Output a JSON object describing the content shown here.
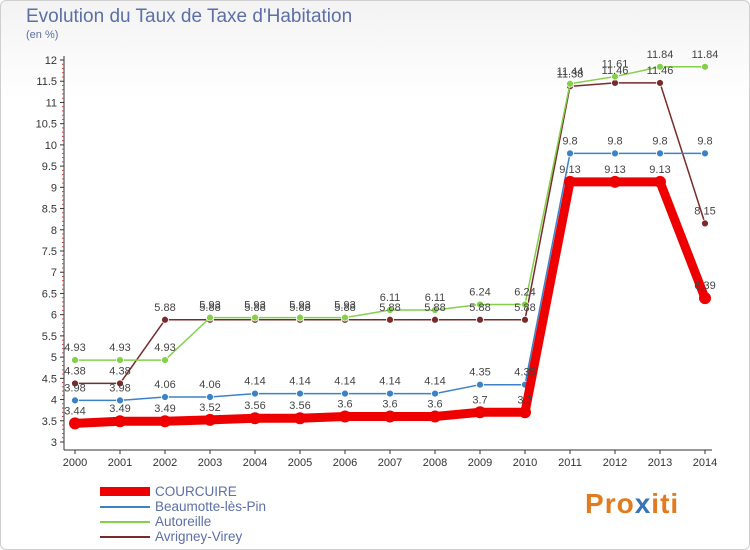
{
  "header": {
    "title": "Evolution du Taux de Taxe d'Habitation",
    "unit": "(en %)"
  },
  "logo": {
    "text": "Proxiti",
    "colors": [
      "#e07b1f",
      "#e07b1f",
      "#e07b1f",
      "#3b73b9",
      "#e07b1f",
      "#e07b1f",
      "#e07b1f"
    ]
  },
  "chart_data": {
    "type": "line",
    "x": [
      "2000",
      "2001",
      "2002",
      "2003",
      "2004",
      "2005",
      "2006",
      "2007",
      "2008",
      "2009",
      "2010",
      "2011",
      "2012",
      "2013",
      "2014"
    ],
    "ylim": [
      3,
      12
    ],
    "yticks": [
      "3",
      "3.5",
      "4",
      "4.5",
      "5",
      "5.5",
      "6",
      "6.5",
      "7",
      "7.5",
      "8",
      "8.5",
      "9",
      "9.5",
      "10",
      "10.5",
      "11",
      "11.5",
      "12"
    ],
    "grid": false,
    "legend_position": "bottom-left",
    "series": [
      {
        "name": "COURCUIRE",
        "color": "#ee0000",
        "values": [
          3.44,
          3.49,
          3.49,
          3.52,
          3.56,
          3.56,
          3.6,
          3.6,
          3.6,
          3.7,
          3.7,
          9.13,
          9.13,
          9.13,
          6.39
        ],
        "labels": [
          "3.44",
          "3.49",
          "3.49",
          "3.52",
          "3.56",
          "3.56",
          "3.6",
          "3.6",
          "3.6",
          "3.7",
          "3.7",
          "9.13",
          "9.13",
          "9.13",
          "6.39"
        ]
      },
      {
        "name": "Beaumotte-lès-Pin",
        "color": "#3b82c8",
        "values": [
          3.98,
          3.98,
          4.06,
          4.06,
          4.14,
          4.14,
          4.14,
          4.14,
          4.14,
          4.35,
          4.35,
          9.8,
          9.8,
          9.8,
          9.8
        ],
        "labels": [
          "3.98",
          "3.98",
          "4.06",
          "4.06",
          "4.14",
          "4.14",
          "4.14",
          "4.14",
          "4.14",
          "4.35",
          "4.35",
          "9.8",
          "9.8",
          "9.8",
          "9.8"
        ]
      },
      {
        "name": "Autoreille",
        "color": "#84d04a",
        "values": [
          4.93,
          4.93,
          4.93,
          5.93,
          5.93,
          5.93,
          5.93,
          6.11,
          6.11,
          6.24,
          6.24,
          11.44,
          11.61,
          11.84,
          11.84
        ],
        "labels": [
          "4.93",
          "4.93",
          "4.93",
          "5.93",
          "5.93",
          "5.93",
          "5.93",
          "6.11",
          "6.11",
          "6.24",
          "6.24",
          "11.44",
          "11.61",
          "11.84",
          "11.84"
        ]
      },
      {
        "name": "Avrigney-Virey",
        "color": "#7a2a2a",
        "values": [
          4.38,
          4.38,
          5.88,
          5.88,
          5.88,
          5.88,
          5.88,
          5.88,
          5.88,
          5.88,
          5.88,
          11.38,
          11.46,
          11.46,
          8.15
        ],
        "labels": [
          "4.38",
          "4.38",
          "5.88",
          "5.88",
          "5.88",
          "5.88",
          "5.88",
          "5.88",
          "5.88",
          "5.88",
          "5.88",
          "11.38",
          "11.46",
          "11.46",
          "8.15"
        ]
      }
    ]
  }
}
